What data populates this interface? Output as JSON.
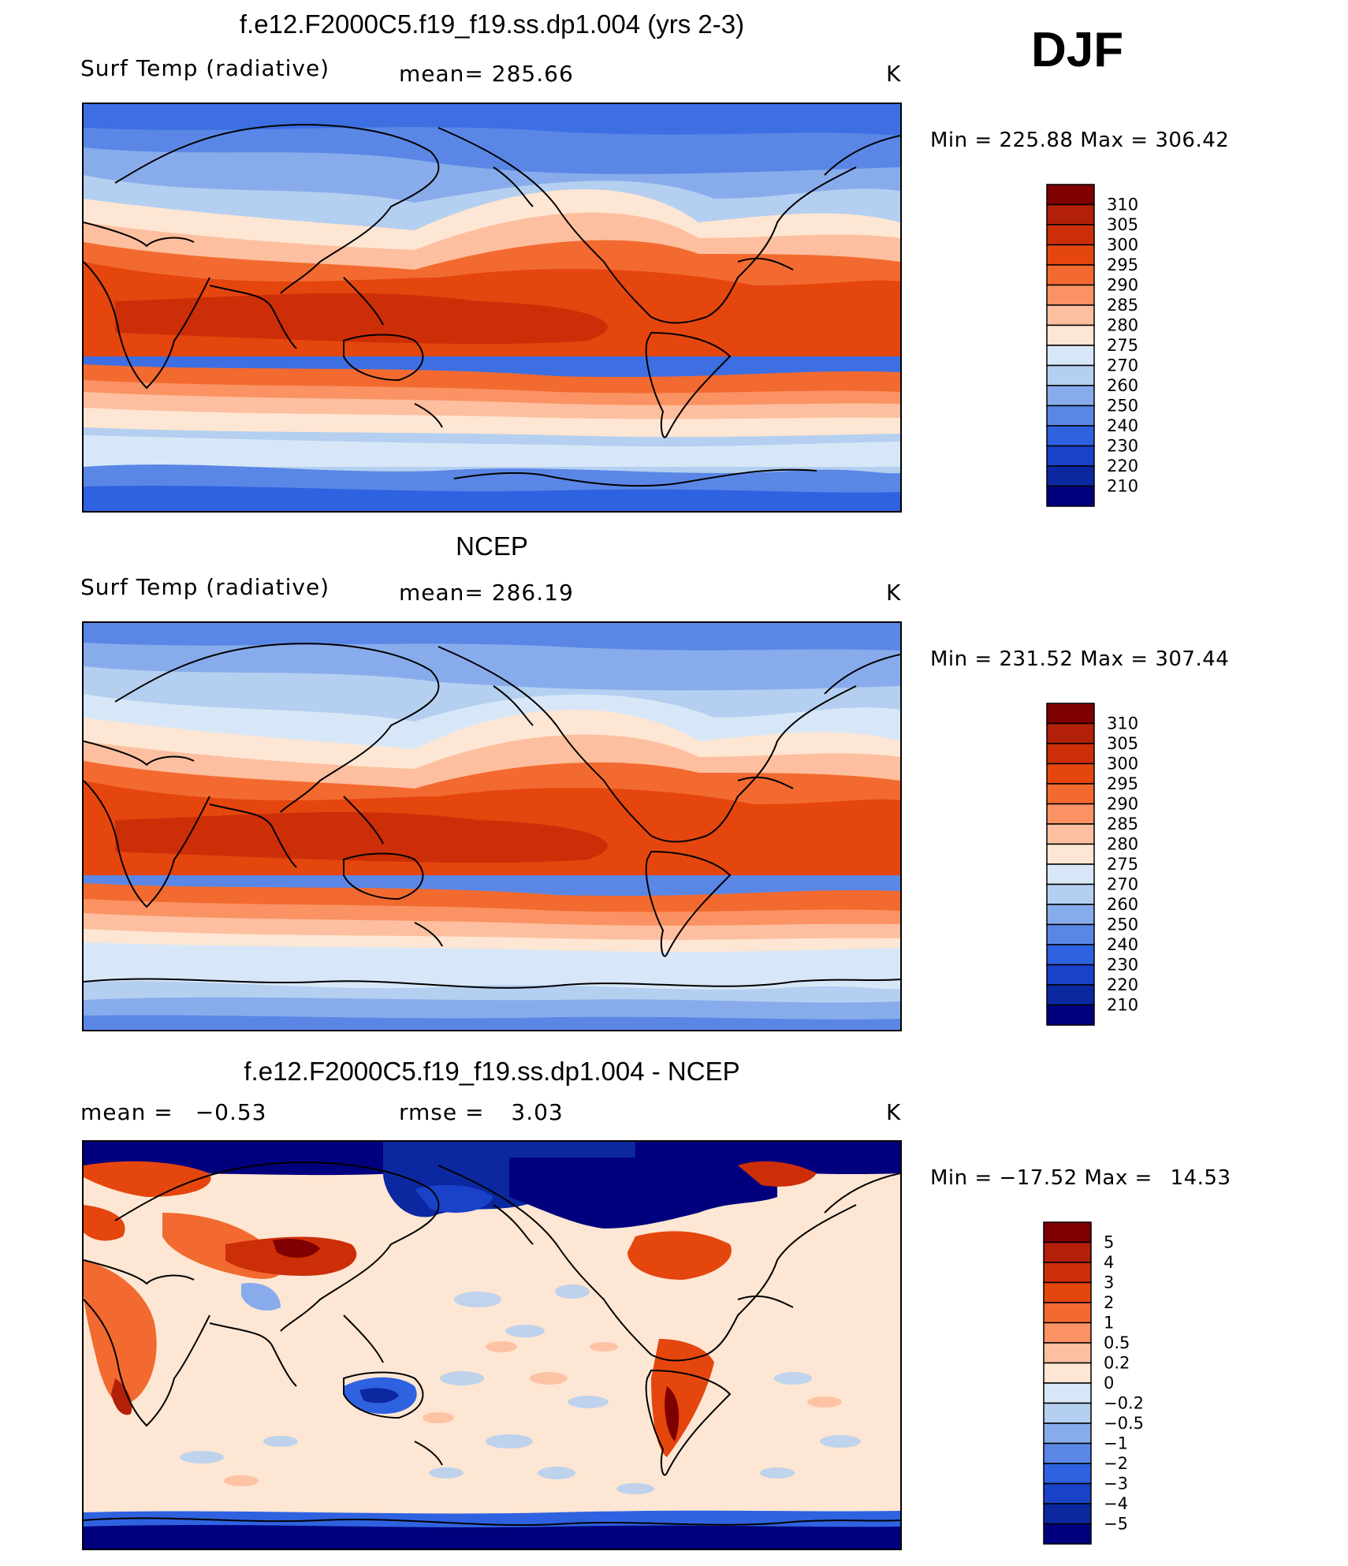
{
  "season": "DJF",
  "panels": [
    {
      "title": "f.e12.F2000C5.f19_f19.ss.dp1.004 (yrs 2-3)",
      "left_label": "Surf Temp (radiative)",
      "mid_label": "mean=",
      "mid_value": "285.66",
      "units": "K",
      "min_label": "Min",
      "min_value": "225.88",
      "max_label": "Max",
      "max_value": "306.42",
      "palette": "temp",
      "colorbar_levels": [
        "310",
        "305",
        "300",
        "295",
        "290",
        "285",
        "280",
        "275",
        "270",
        "260",
        "250",
        "240",
        "230",
        "220",
        "210"
      ]
    },
    {
      "title": "NCEP",
      "left_label": "Surf Temp (radiative)",
      "mid_label": "mean=",
      "mid_value": "286.19",
      "units": "K",
      "min_label": "Min",
      "min_value": "231.52",
      "max_label": "Max",
      "max_value": "307.44",
      "palette": "temp",
      "colorbar_levels": [
        "310",
        "305",
        "300",
        "295",
        "290",
        "285",
        "280",
        "275",
        "270",
        "260",
        "250",
        "240",
        "230",
        "220",
        "210"
      ]
    },
    {
      "title": "f.e12.F2000C5.f19_f19.ss.dp1.004 - NCEP",
      "left_label": "mean =",
      "left_value": "−0.53",
      "mid_label": "rmse =",
      "mid_value": "3.03",
      "units": "K",
      "min_label": "Min",
      "min_value": "−17.52",
      "max_label": "Max",
      "max_value": "14.53",
      "palette": "diff",
      "colorbar_levels": [
        "5",
        "4",
        "3",
        "2",
        "1",
        "0.5",
        "0.2",
        "0",
        "−0.2",
        "−0.5",
        "−1",
        "−2",
        "−3",
        "−4",
        "−5"
      ]
    }
  ],
  "colors": {
    "temp": [
      "#7f0000",
      "#b2200a",
      "#cc2e08",
      "#e5460e",
      "#f26a30",
      "#fa9263",
      "#fdbf9f",
      "#fde6d3",
      "#d7e7f7",
      "#b4cff0",
      "#88aceb",
      "#5a87e6",
      "#2f62e0",
      "#1942c8",
      "#0b28a0",
      "#00007f"
    ],
    "diff": [
      "#7f0000",
      "#b2200a",
      "#cc2e08",
      "#e5460e",
      "#f26a30",
      "#fa9263",
      "#fdbf9f",
      "#fde6d3",
      "#d7e7f7",
      "#b4cff0",
      "#88aceb",
      "#5a87e6",
      "#2f62e0",
      "#1942c8",
      "#0b28a0",
      "#00007f"
    ]
  }
}
